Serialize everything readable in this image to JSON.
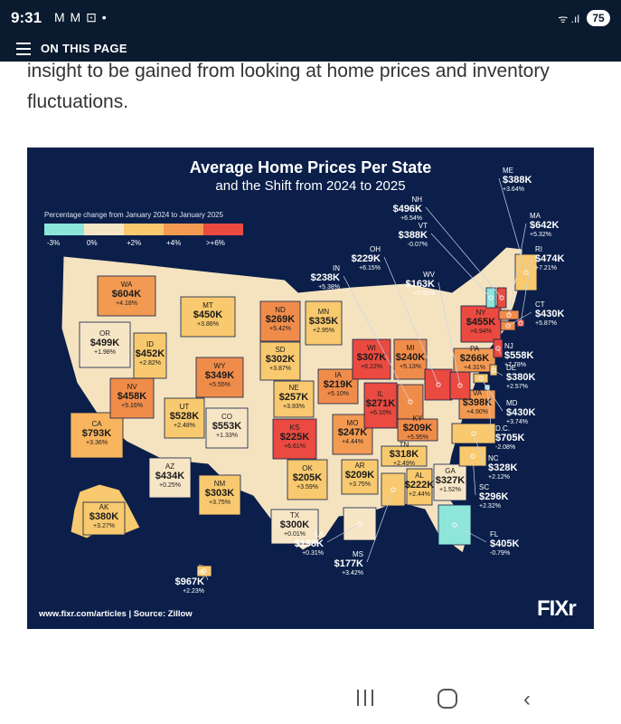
{
  "status_bar": {
    "time": "9:31",
    "notifications": "M M ⊡ •",
    "signal": "ᯤ .ıl",
    "battery": "75"
  },
  "page_bar": {
    "label": "ON THIS PAGE"
  },
  "article": {
    "text": "insight to be gained from looking at home prices and inventory fluctuations."
  },
  "infographic": {
    "title": "Average Home Prices Per State",
    "subtitle": "and the Shift from 2024 to 2025",
    "legend_title": "Percentage change from January 2024 to January 2025",
    "legend": [
      {
        "label": "-3%",
        "color": "#8ee6da"
      },
      {
        "label": "0%",
        "color": "#f7e6c6"
      },
      {
        "label": "+2%",
        "color": "#f8c96e"
      },
      {
        "label": "+4%",
        "color": "#f39a52"
      },
      {
        "label": ">+6%",
        "color": "#ea4a40"
      }
    ],
    "footer_url": "www.fixr.com/articles",
    "footer_separator": "|",
    "footer_source": "Source: Zillow",
    "logo": "FIXr"
  },
  "states": [
    {
      "abbr": "WA",
      "price": "$604K",
      "change": "+4.18%",
      "color": "#f39a52"
    },
    {
      "abbr": "OR",
      "price": "$499K",
      "change": "+1.98%",
      "color": "#f7e6c6"
    },
    {
      "abbr": "CA",
      "price": "$793K",
      "change": "+3.36%",
      "color": "#f8b55d"
    },
    {
      "abbr": "ID",
      "price": "$452K",
      "change": "+2.82%",
      "color": "#f8c96e"
    },
    {
      "abbr": "NV",
      "price": "$458K",
      "change": "+5.16%",
      "color": "#f08c4a"
    },
    {
      "abbr": "MT",
      "price": "$450K",
      "change": "+3.86%",
      "color": "#f8c96e"
    },
    {
      "abbr": "WY",
      "price": "$349K",
      "change": "+5.55%",
      "color": "#f08c4a"
    },
    {
      "abbr": "UT",
      "price": "$528K",
      "change": "+2.48%",
      "color": "#f8c96e"
    },
    {
      "abbr": "AZ",
      "price": "$434K",
      "change": "+0.25%",
      "color": "#f7e6c6"
    },
    {
      "abbr": "CO",
      "price": "$553K",
      "change": "+1.33%",
      "color": "#f7e6c6"
    },
    {
      "abbr": "NM",
      "price": "$303K",
      "change": "+3.75%",
      "color": "#f8c96e"
    },
    {
      "abbr": "ND",
      "price": "$269K",
      "change": "+5.42%",
      "color": "#f08c4a"
    },
    {
      "abbr": "SD",
      "price": "$302K",
      "change": "+3.87%",
      "color": "#f8c96e"
    },
    {
      "abbr": "NE",
      "price": "$257K",
      "change": "+3.93%",
      "color": "#f8c96e"
    },
    {
      "abbr": "KS",
      "price": "$225K",
      "change": "+6.61%",
      "color": "#ea4a40"
    },
    {
      "abbr": "OK",
      "price": "$205K",
      "change": "+3.59%",
      "color": "#f8c96e"
    },
    {
      "abbr": "TX",
      "price": "$300K",
      "change": "+0.01%",
      "color": "#f7e6c6"
    },
    {
      "abbr": "MN",
      "price": "$335K",
      "change": "+2.95%",
      "color": "#f8c96e"
    },
    {
      "abbr": "IA",
      "price": "$219K",
      "change": "+5.10%",
      "color": "#f08c4a"
    },
    {
      "abbr": "MO",
      "price": "$247K",
      "change": "+4.44%",
      "color": "#f39a52"
    },
    {
      "abbr": "AR",
      "price": "$209K",
      "change": "+3.75%",
      "color": "#f8c96e"
    },
    {
      "abbr": "LA",
      "price": "$198K",
      "change": "+0.31%",
      "color": "#f7e6c6"
    },
    {
      "abbr": "WI",
      "price": "$307K",
      "change": "+6.22%",
      "color": "#ea4a40"
    },
    {
      "abbr": "IL",
      "price": "$271K",
      "change": "+6.10%",
      "color": "#ea4a40"
    },
    {
      "abbr": "MI",
      "price": "$240K",
      "change": "+5.13%",
      "color": "#f08c4a"
    },
    {
      "abbr": "IN",
      "price": "$238K",
      "change": "+5.38%",
      "color": "#f08c4a"
    },
    {
      "abbr": "OH",
      "price": "$229K",
      "change": "+6.15%",
      "color": "#ea4a40"
    },
    {
      "abbr": "KY",
      "price": "$209K",
      "change": "+5.95%",
      "color": "#f08c4a"
    },
    {
      "abbr": "TN",
      "price": "$318K",
      "change": "+2.49%",
      "color": "#f8c96e"
    },
    {
      "abbr": "MS",
      "price": "$177K",
      "change": "+3.42%",
      "color": "#f8c96e"
    },
    {
      "abbr": "AL",
      "price": "$222K",
      "change": "+2.44%",
      "color": "#f8c96e"
    },
    {
      "abbr": "GA",
      "price": "$327K",
      "change": "+1.52%",
      "color": "#f7e6c6"
    },
    {
      "abbr": "FL",
      "price": "$405K",
      "change": "-0.79%",
      "color": "#8ee6da"
    },
    {
      "abbr": "SC",
      "price": "$296K",
      "change": "+2.32%",
      "color": "#f8c96e"
    },
    {
      "abbr": "NC",
      "price": "$328K",
      "change": "+2.12%",
      "color": "#f8c96e"
    },
    {
      "abbr": "VA",
      "price": "$398K",
      "change": "+4.90%",
      "color": "#f39a52"
    },
    {
      "abbr": "WV",
      "price": "$163K",
      "change": "+6.91%",
      "color": "#ea4a40"
    },
    {
      "abbr": "PA",
      "price": "$266K",
      "change": "+4.31%",
      "color": "#f39a52"
    },
    {
      "abbr": "NY",
      "price": "$455K",
      "change": "+6.94%",
      "color": "#ea4a40"
    },
    {
      "abbr": "ME",
      "price": "$388K",
      "change": "+3.64%",
      "color": "#f8c96e"
    },
    {
      "abbr": "NH",
      "price": "$496K",
      "change": "+6.54%",
      "color": "#ea4a40"
    },
    {
      "abbr": "VT",
      "price": "$388K",
      "change": "-0.07%",
      "color": "#8ee6da"
    },
    {
      "abbr": "MA",
      "price": "$642K",
      "change": "+5.32%",
      "color": "#f08c4a"
    },
    {
      "abbr": "RI",
      "price": "$474K",
      "change": "+7.21%",
      "color": "#ea4a40"
    },
    {
      "abbr": "CT",
      "price": "$430K",
      "change": "+5.87%",
      "color": "#f08c4a"
    },
    {
      "abbr": "NJ",
      "price": "$558K",
      "change": "+7.78%",
      "color": "#ea4a40"
    },
    {
      "abbr": "DE",
      "price": "$380K",
      "change": "+2.57%",
      "color": "#f8c96e"
    },
    {
      "abbr": "MD",
      "price": "$430K",
      "change": "+3.74%",
      "color": "#f8c96e"
    },
    {
      "abbr": "D.C.",
      "price": "$705K",
      "change": "-2.08%",
      "color": "#8ee6da"
    },
    {
      "abbr": "AK",
      "price": "$380K",
      "change": "+3.27%",
      "color": "#f8c96e"
    },
    {
      "abbr": "HI",
      "price": "$967K",
      "change": "+2.23%",
      "color": "#f8c96e"
    }
  ]
}
